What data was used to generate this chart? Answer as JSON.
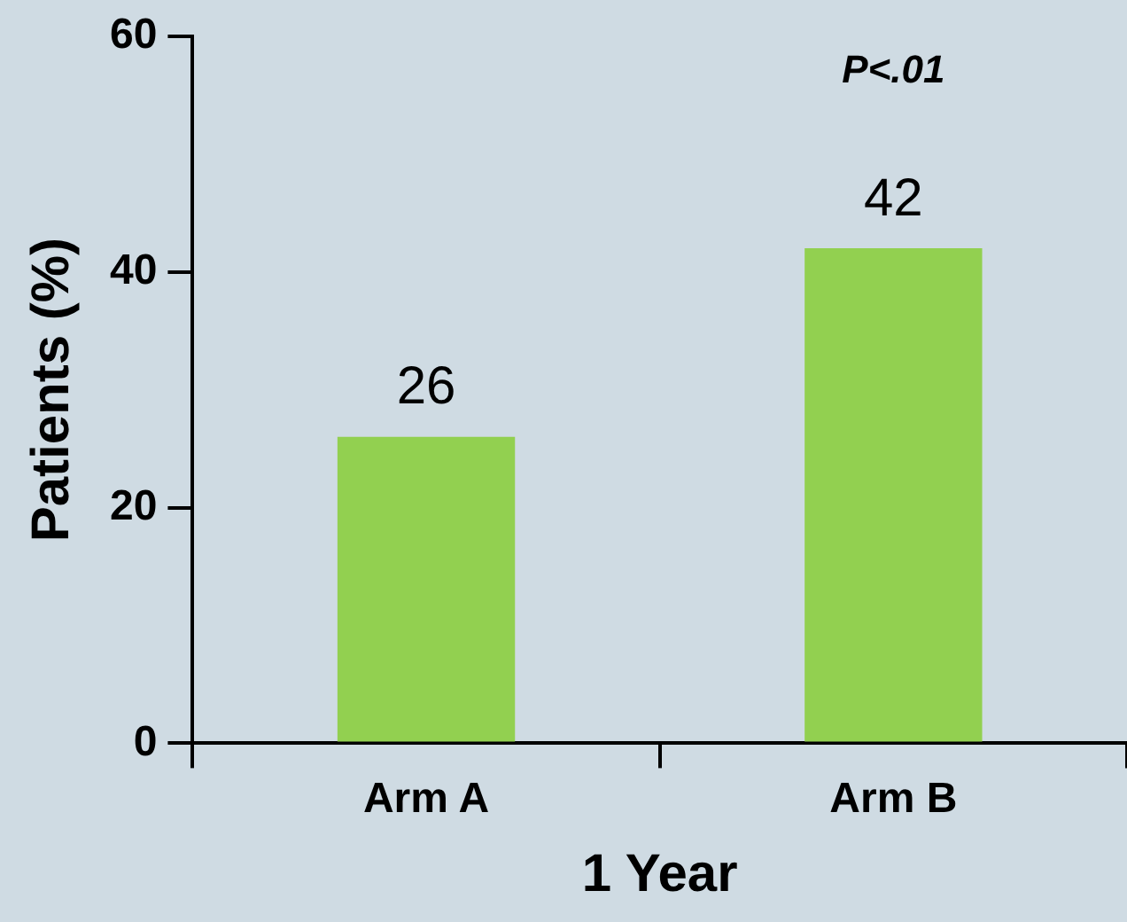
{
  "chart_data": {
    "type": "bar",
    "categories": [
      "Arm A",
      "Arm B"
    ],
    "values": [
      26,
      42
    ],
    "color": "#92d050",
    "ylim": [
      0,
      60
    ],
    "yticks": [
      0,
      20,
      40,
      60
    ],
    "xlabel": "1 Year",
    "ylabel": "Patients (%)",
    "data_labels": true,
    "grid": false,
    "legend": false,
    "annotations": [
      "P<.01"
    ]
  }
}
